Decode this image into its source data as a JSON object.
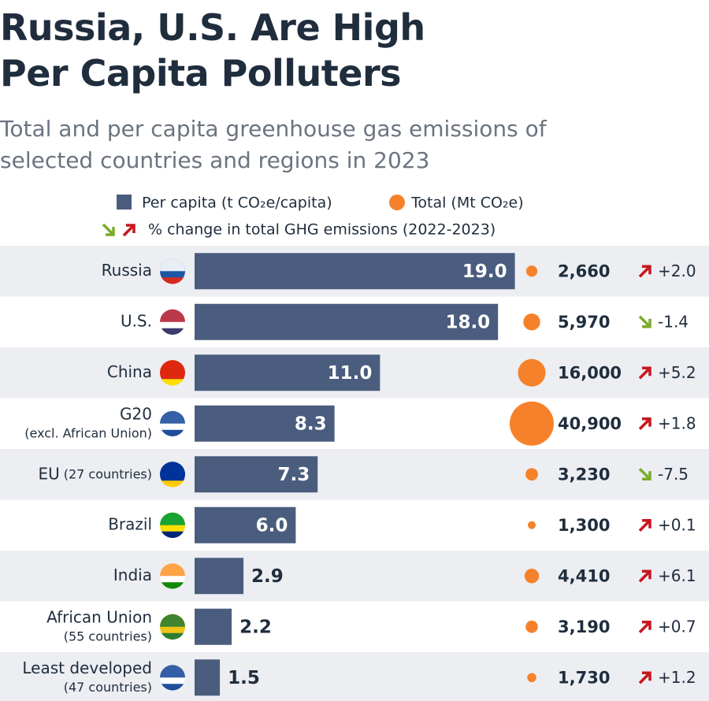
{
  "chart_data": {
    "type": "bar",
    "title": "Russia, U.S. Are High Per Capita Polluters",
    "subtitle": "Total and per capita greenhouse gas emissions of selected countries and regions in 2023",
    "categories": [
      "Russia",
      "U.S.",
      "China",
      "G20",
      "EU",
      "Brazil",
      "India",
      "African Union",
      "Least developed"
    ],
    "category_notes": [
      null,
      null,
      null,
      "(excl. African Union)",
      "(27 countries)",
      null,
      null,
      "(55 countries)",
      "(47 countries)"
    ],
    "series": [
      {
        "name": "Per capita (t CO₂e/capita)",
        "color": "#4b5d7e",
        "values": [
          19.0,
          18.0,
          11.0,
          8.3,
          7.3,
          6.0,
          2.9,
          2.2,
          1.5
        ],
        "value_labels": [
          "19.0",
          "18.0",
          "11.0",
          "8.3",
          "7.3",
          "6.0",
          "2.9",
          "2.2",
          "1.5"
        ]
      },
      {
        "name": "Total (Mt CO₂e)",
        "color": "#f5822a",
        "values": [
          2660,
          5970,
          16000,
          40900,
          3230,
          1300,
          4410,
          3190,
          1730
        ],
        "value_labels": [
          "2,660",
          "5,970",
          "16,000",
          "40,900",
          "3,230",
          "1,300",
          "4,410",
          "3,190",
          "1,730"
        ]
      },
      {
        "name": "% change in total GHG emissions (2022-2023)",
        "color_up": "#c8161e",
        "color_down": "#7cab2b",
        "values": [
          2.0,
          -1.4,
          5.2,
          1.8,
          -7.5,
          0.1,
          6.1,
          0.7,
          1.2
        ],
        "value_labels": [
          "+2.0",
          "-1.4",
          "+5.2",
          "+1.8",
          "-7.5",
          "+0.1",
          "+6.1",
          "+0.7",
          "+1.2"
        ]
      }
    ]
  }
}
